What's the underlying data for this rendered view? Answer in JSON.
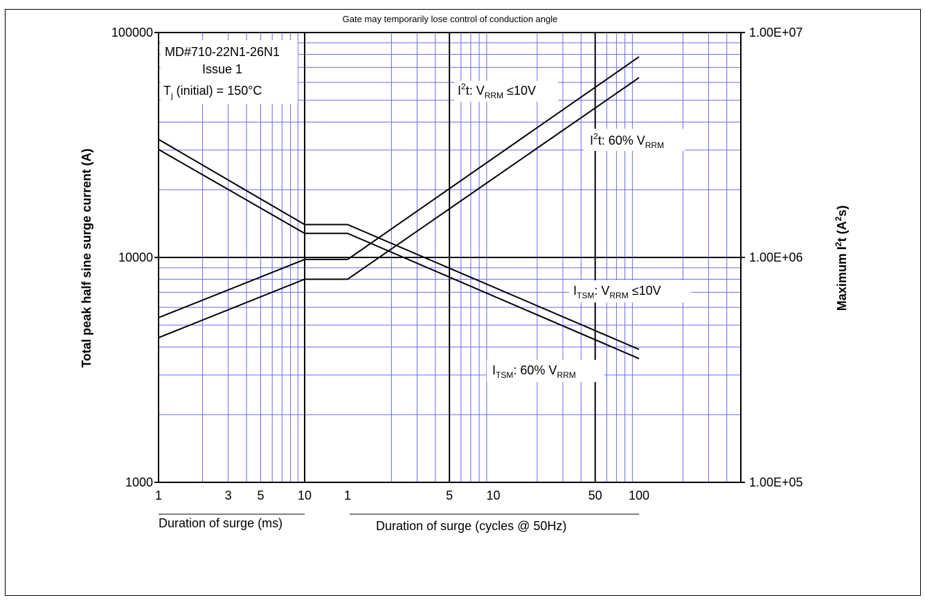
{
  "chart_data": {
    "type": "line",
    "title": "Gate may temporarily lose control of conduction angle",
    "info_box": {
      "line1": "MD#710-22N1-26N1",
      "line2": "Issue 1",
      "tj_pre": "T",
      "tj_sub": "j",
      "tj_post": " (initial) = 150°C"
    },
    "y_left": {
      "label": "Total peak half sine surge current (A)",
      "scale": "log",
      "range": [
        1000,
        100000
      ],
      "ticks": [
        {
          "value": 1000,
          "label": "1000"
        },
        {
          "value": 10000,
          "label": "10000"
        },
        {
          "value": 100000,
          "label": "100000"
        }
      ]
    },
    "y_right": {
      "label_pre": "Maximum I",
      "label_sup": "2",
      "label_mid": "t (A",
      "label_sup2": "2",
      "label_post": "s)",
      "scale": "log",
      "range": [
        100000,
        10000000
      ],
      "ticks": [
        {
          "value": 100000,
          "label": "1.00E+05"
        },
        {
          "value": 1000000,
          "label": "1.00E+06"
        },
        {
          "value": 10000000,
          "label": "1.00E+07"
        }
      ]
    },
    "x_ms": {
      "label": "Duration of surge (ms)",
      "scale": "log",
      "range": [
        1,
        10
      ],
      "tick_labels": [
        {
          "value": 1,
          "label": "1"
        },
        {
          "value": 3,
          "label": "3"
        },
        {
          "value": 5,
          "label": "5"
        },
        {
          "value": 10,
          "label": "10"
        }
      ]
    },
    "x_cycles": {
      "label": "Duration of surge (cycles @ 50Hz)",
      "scale": "log",
      "range": [
        1,
        100
      ],
      "tick_labels": [
        {
          "value": 1,
          "label": "1"
        },
        {
          "value": 5,
          "label": "5"
        },
        {
          "value": 10,
          "label": "10"
        },
        {
          "value": 50,
          "label": "50"
        },
        {
          "value": 100,
          "label": "100"
        }
      ]
    },
    "grid": true,
    "grid_color": "#6a6aee",
    "series": [
      {
        "axis": "left",
        "ms": [
          [
            1,
            33500
          ],
          [
            10,
            14000
          ]
        ],
        "cycles": [
          [
            1,
            14000
          ],
          [
            100,
            3900
          ]
        ]
      },
      {
        "axis": "left",
        "ms": [
          [
            1,
            30200
          ],
          [
            10,
            12800
          ]
        ],
        "cycles": [
          [
            1,
            12800
          ],
          [
            100,
            3550
          ]
        ]
      },
      {
        "axis": "right",
        "ms": [
          [
            1,
            540000
          ],
          [
            10,
            980000
          ]
        ],
        "cycles": [
          [
            1,
            980000
          ],
          [
            100,
            7800000
          ]
        ]
      },
      {
        "axis": "right",
        "ms": [
          [
            1,
            440000
          ],
          [
            10,
            800000
          ]
        ],
        "cycles": [
          [
            1,
            800000
          ],
          [
            100,
            6300000
          ]
        ]
      }
    ],
    "annotations": [
      {
        "id": "i2t-low",
        "parts": [
          [
            "I",
            ""
          ],
          [
            "2",
            "sup"
          ],
          [
            "t: V",
            ""
          ],
          [
            "RRM",
            "sub"
          ],
          [
            " ≤10V",
            ""
          ]
        ]
      },
      {
        "id": "i2t-60",
        "parts": [
          [
            "I",
            ""
          ],
          [
            "2",
            "sup"
          ],
          [
            "t: 60% V",
            ""
          ],
          [
            "RRM",
            "sub"
          ]
        ]
      },
      {
        "id": "itsm-low",
        "parts": [
          [
            "I",
            ""
          ],
          [
            "TSM",
            "sub"
          ],
          [
            ": V",
            ""
          ],
          [
            "RRM",
            "sub"
          ],
          [
            " ≤10V",
            ""
          ]
        ]
      },
      {
        "id": "itsm-60",
        "parts": [
          [
            "I",
            ""
          ],
          [
            "TSM",
            "sub"
          ],
          [
            ": 60% V",
            ""
          ],
          [
            "RRM",
            "sub"
          ]
        ]
      }
    ]
  }
}
